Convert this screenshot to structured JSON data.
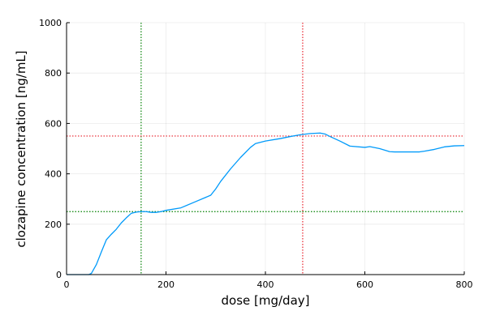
{
  "chart_data": {
    "type": "line",
    "xlabel": "dose [mg/day]",
    "ylabel": "clozapine concentration [ng/mL]",
    "xlim": [
      0,
      800
    ],
    "ylim": [
      0,
      1000
    ],
    "x_ticks": [
      0,
      200,
      400,
      600,
      800
    ],
    "y_ticks": [
      0,
      200,
      400,
      600,
      800,
      1000
    ],
    "x_tick_labels": [
      "0",
      "200",
      "400",
      "600",
      "800"
    ],
    "y_tick_labels": [
      "0",
      "200",
      "400",
      "600",
      "800",
      "1000"
    ],
    "grid": true,
    "legend": false,
    "series": [
      {
        "color": "#009AFA",
        "x": [
          0,
          45,
          50,
          60,
          70,
          80,
          90,
          100,
          110,
          120,
          130,
          140,
          150,
          160,
          170,
          180,
          190,
          200,
          230,
          260,
          290,
          300,
          310,
          330,
          350,
          370,
          380,
          400,
          430,
          450,
          470,
          490,
          510,
          520,
          530,
          550,
          570,
          600,
          610,
          630,
          650,
          660,
          680,
          710,
          720,
          740,
          760,
          780,
          800
        ],
        "y": [
          0,
          0,
          5,
          40,
          90,
          138,
          160,
          180,
          205,
          225,
          243,
          248,
          250,
          250,
          247,
          247,
          250,
          255,
          265,
          290,
          315,
          340,
          370,
          420,
          465,
          505,
          520,
          530,
          540,
          548,
          555,
          560,
          562,
          558,
          548,
          530,
          510,
          505,
          508,
          500,
          488,
          487,
          487,
          487,
          490,
          497,
          507,
          511,
          512
        ]
      }
    ],
    "reference_lines": [
      {
        "orientation": "vertical",
        "value": 150,
        "color": "#008000",
        "style": "dotted"
      },
      {
        "orientation": "horizontal",
        "value": 250,
        "color": "#008000",
        "style": "dotted"
      },
      {
        "orientation": "vertical",
        "value": 475,
        "color": "#E8202A",
        "style": "dotted"
      },
      {
        "orientation": "horizontal",
        "value": 550,
        "color": "#E8202A",
        "style": "dotted"
      }
    ]
  }
}
